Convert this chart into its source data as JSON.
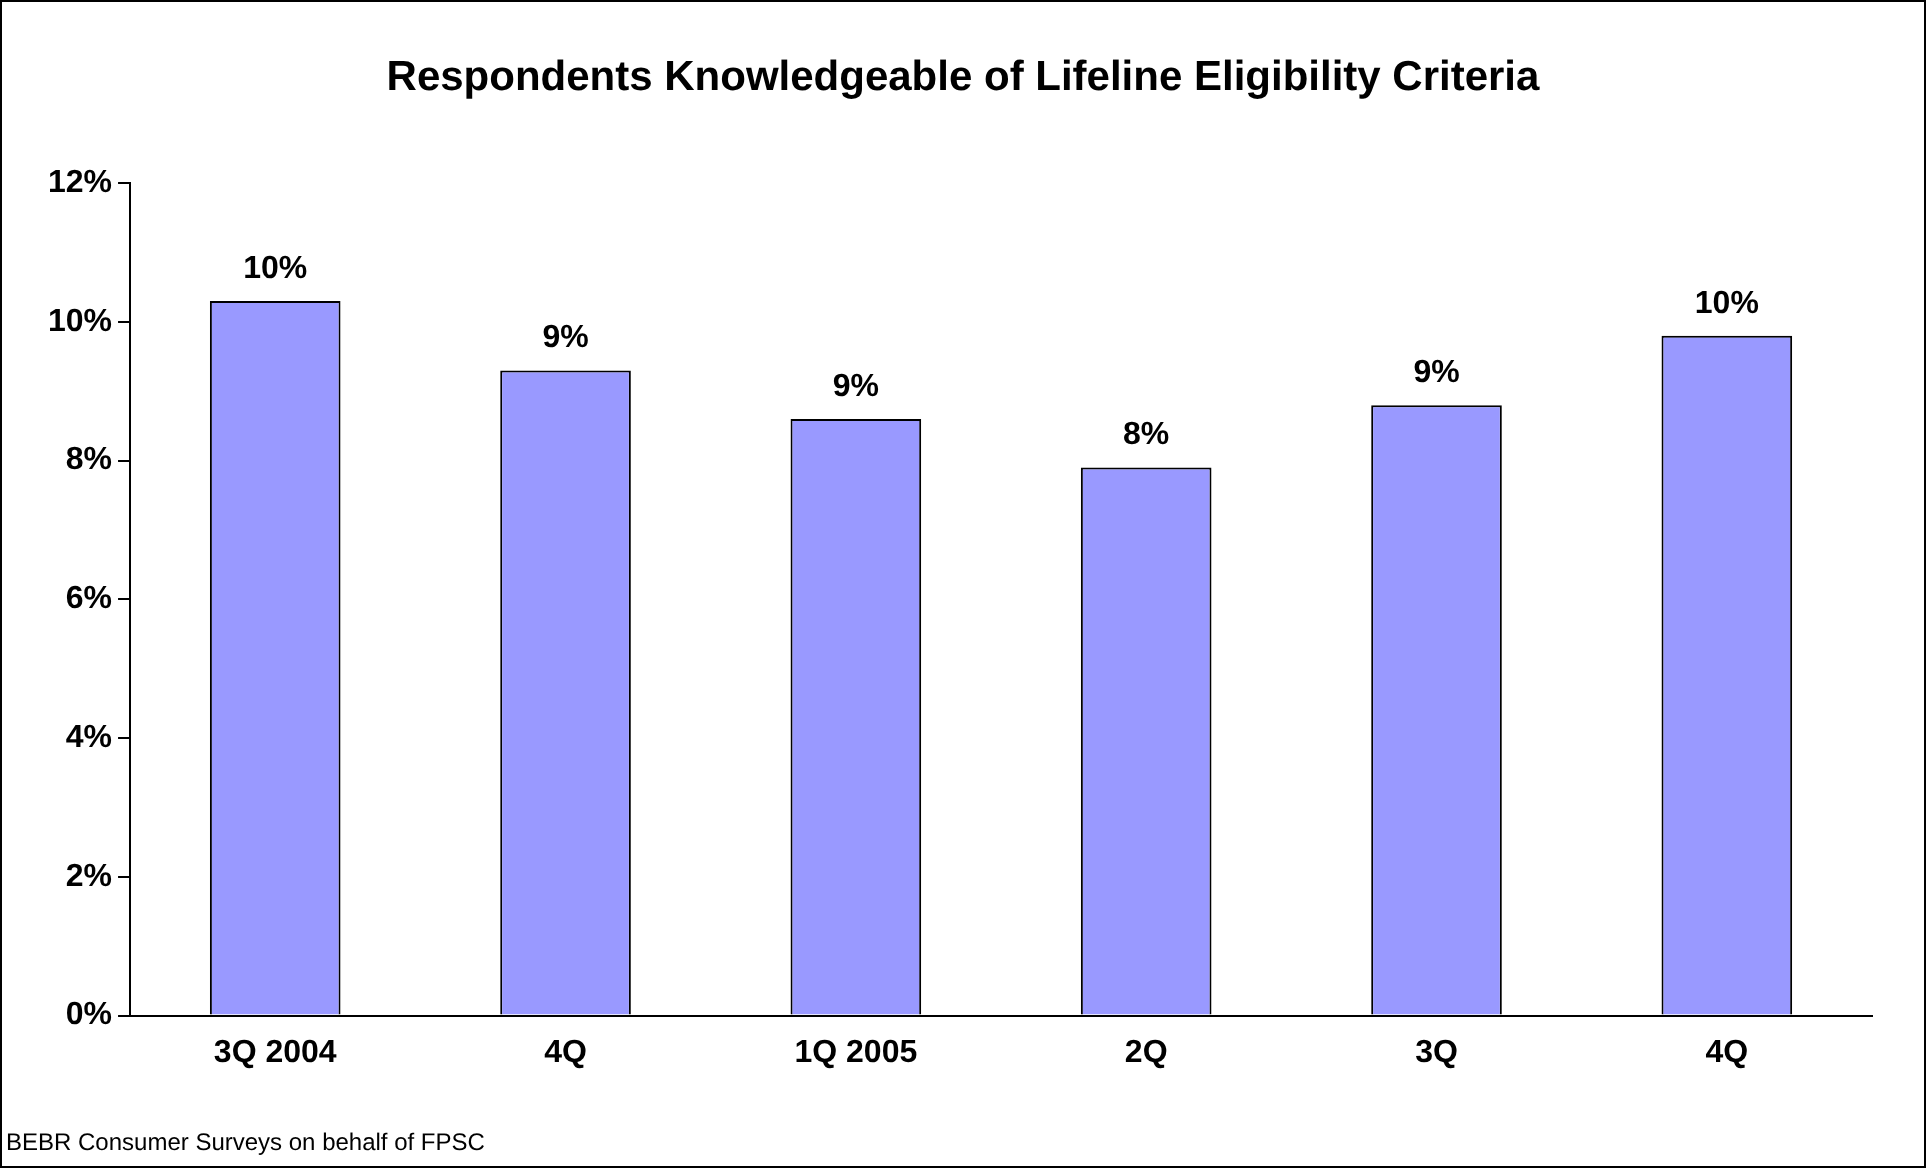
{
  "chart_data": {
    "type": "bar",
    "title": "Respondents Knowledgeable of Lifeline Eligibility Criteria",
    "categories": [
      "3Q 2004",
      "4Q",
      "1Q 2005",
      "2Q",
      "3Q",
      "4Q"
    ],
    "values": [
      10.3,
      9.3,
      8.6,
      7.9,
      8.8,
      9.8
    ],
    "value_labels": [
      "10%",
      "9%",
      "9%",
      "8%",
      "9%",
      "10%"
    ],
    "color": "#9999ff",
    "ylim": [
      0,
      12
    ],
    "yticks": [
      {
        "value": 0,
        "label": "0%"
      },
      {
        "value": 2,
        "label": "2%"
      },
      {
        "value": 4,
        "label": "4%"
      },
      {
        "value": 6,
        "label": "6%"
      },
      {
        "value": 8,
        "label": "8%"
      },
      {
        "value": 10,
        "label": "10%"
      },
      {
        "value": 12,
        "label": "12%"
      }
    ],
    "grid": false,
    "legend": false,
    "annotations": [
      "BEBR Consumer Surveys on behalf of FPSC"
    ]
  }
}
